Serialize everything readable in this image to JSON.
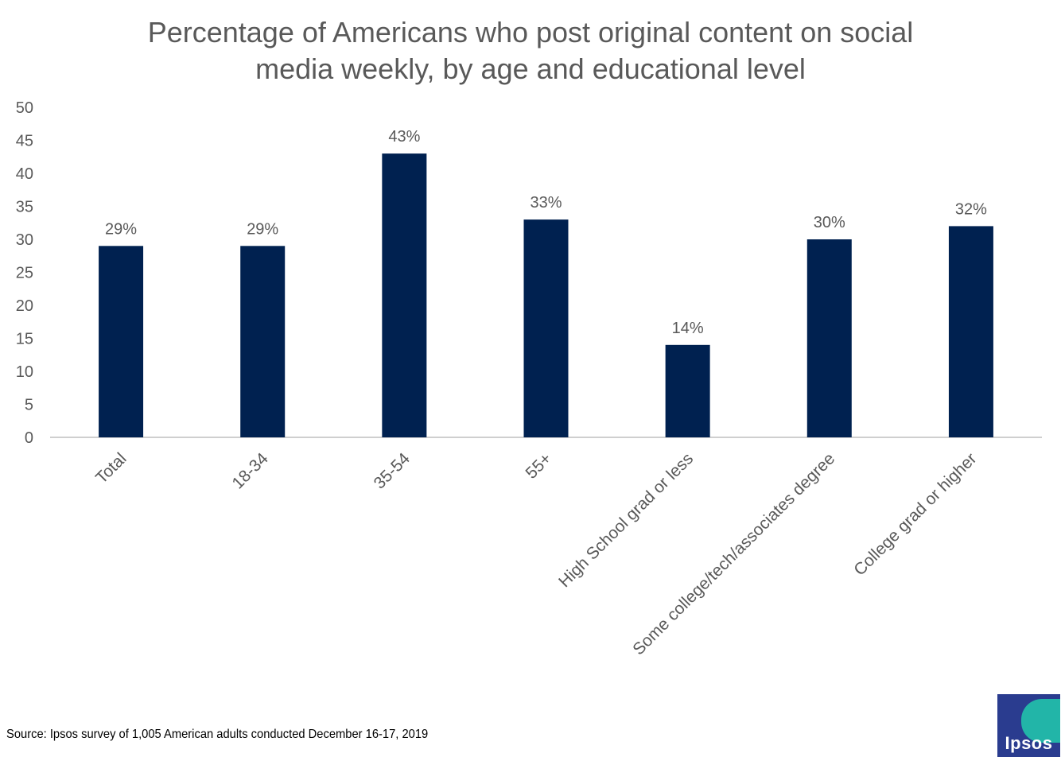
{
  "title": {
    "line1": "Percentage of Americans who post original content on social",
    "line2": "media weekly, by age and educational level"
  },
  "source": "Source: Ipsos survey of 1,005 American adults conducted December 16-17, 2019",
  "logo": {
    "text": "Ipsos"
  },
  "colors": {
    "bar": "#002150",
    "text": "#595959",
    "axis": "#bfbfbf",
    "logo_bg": "#2a3c8f",
    "logo_accent": "#22b5a8"
  },
  "chart_data": {
    "type": "bar",
    "title": "Percentage of Americans who post original content on social media weekly, by age and educational level",
    "categories": [
      "Total",
      "18-34",
      "35-54",
      "55+",
      "High School grad or less",
      "Some college/tech/associates degree",
      "College grad or higher"
    ],
    "values": [
      29,
      29,
      43,
      33,
      14,
      30,
      32
    ],
    "data_labels": [
      "29%",
      "29%",
      "43%",
      "33%",
      "14%",
      "30%",
      "32%"
    ],
    "ylim": [
      0,
      50
    ],
    "yticks": [
      0,
      5,
      10,
      15,
      20,
      25,
      30,
      35,
      40,
      45,
      50
    ],
    "xlabel": "",
    "ylabel": "",
    "grid": false,
    "legend": "none"
  }
}
